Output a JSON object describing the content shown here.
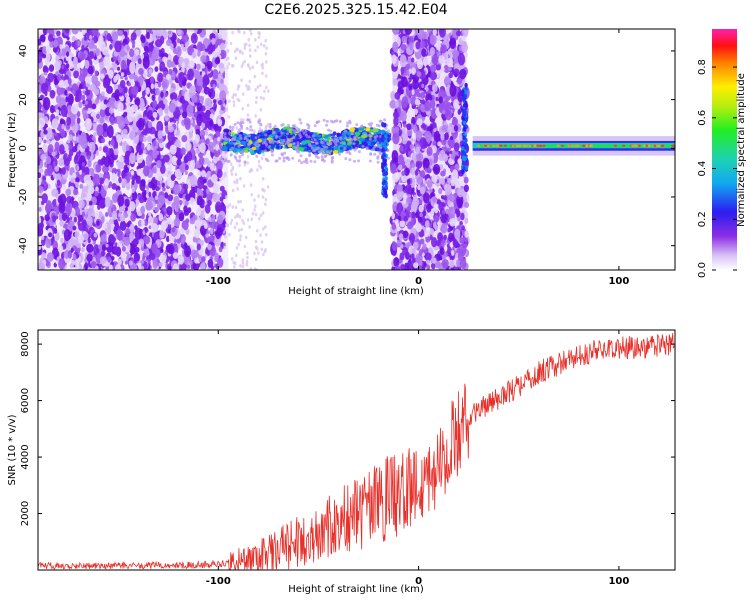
{
  "title": "C2E6.2025.325.15.42.E04",
  "chart_data": [
    {
      "type": "heatmap",
      "xlabel": "Height of straight line (km)",
      "ylabel": "Frequency (Hz)",
      "xlim": [
        -190,
        128
      ],
      "ylim": [
        -50,
        49
      ],
      "xticks": [
        -100,
        0,
        100
      ],
      "xtick_labels": [
        "-100",
        "0",
        "100"
      ],
      "yticks": [
        -40,
        -20,
        0,
        20,
        40
      ],
      "ytick_labels": [
        "-40",
        "-20",
        "0",
        "20",
        "40"
      ],
      "colorbar": {
        "label": "Normalized spectral amplitude",
        "range": [
          0,
          0.95
        ],
        "ticks": [
          0,
          0.2,
          0.4,
          0.6,
          0.8
        ],
        "tick_labels": [
          "0.0",
          "0.2",
          "0.4",
          "0.6",
          "0.8"
        ]
      },
      "regions": [
        {
          "name": "noise",
          "x": [
            -190,
            -95
          ],
          "y": [
            -50,
            49
          ],
          "amplitude": 0.1
        },
        {
          "name": "sparse-noise",
          "x": [
            -95,
            -77
          ],
          "y": [
            -50,
            49
          ],
          "amplitude": 0.05
        },
        {
          "name": "band",
          "x": [
            -97,
            -15
          ],
          "y_center": 3,
          "y_halfwidth": 4,
          "amplitude": 0.45
        },
        {
          "name": "noise",
          "x": [
            -15,
            24
          ],
          "y": [
            -50,
            49
          ],
          "amplitude": 0.12
        },
        {
          "name": "band",
          "x": [
            28,
            128
          ],
          "y_center": 1,
          "y_halfwidth": 2.5,
          "amplitude": 0.6
        }
      ]
    },
    {
      "type": "line",
      "xlabel": "Height of straight line (km)",
      "ylabel": "SNR (10 * v/v)",
      "xlim": [
        -190,
        128
      ],
      "ylim": [
        0,
        8500
      ],
      "xticks": [
        -100,
        0,
        100
      ],
      "xtick_labels": [
        "-100",
        "0",
        "100"
      ],
      "yticks": [
        2000,
        4000,
        6000,
        8000
      ],
      "ytick_labels": [
        "2000",
        "4000",
        "6000",
        "8000"
      ],
      "series": [
        {
          "name": "SNR",
          "color": "#e8302a",
          "x": [
            -190,
            -150,
            -110,
            -95,
            -80,
            -70,
            -60,
            -50,
            -40,
            -30,
            -20,
            -10,
            0,
            10,
            20,
            30,
            40,
            50,
            60,
            70,
            80,
            90,
            100,
            110,
            120,
            128
          ],
          "y": [
            150,
            150,
            180,
            250,
            400,
            700,
            1000,
            1300,
            1700,
            2000,
            2300,
            2700,
            3000,
            3700,
            4900,
            5700,
            6100,
            6500,
            7000,
            7300,
            7600,
            7800,
            7850,
            7900,
            7950,
            8000
          ]
        }
      ]
    }
  ]
}
